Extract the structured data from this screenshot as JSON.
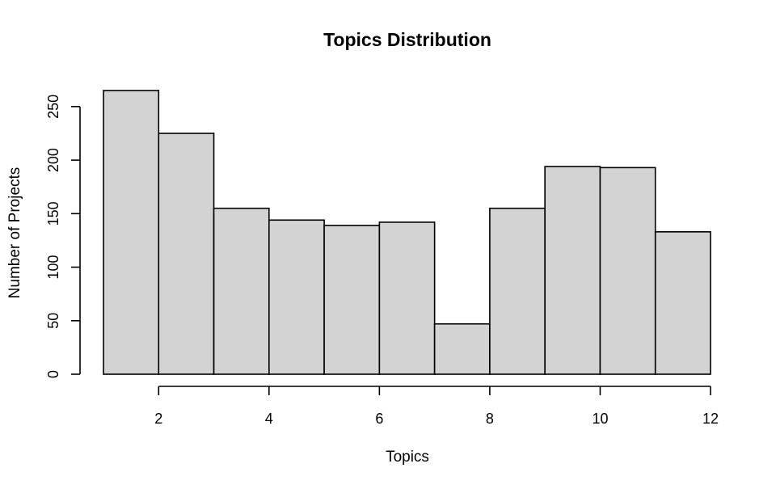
{
  "chart_data": {
    "type": "bar",
    "subtype": "histogram",
    "title": "Topics Distribution",
    "xlabel": "Topics",
    "ylabel": "Number of Projects",
    "bins": [
      {
        "x0": 1,
        "x1": 2,
        "value": 265
      },
      {
        "x0": 2,
        "x1": 3,
        "value": 225
      },
      {
        "x0": 3,
        "x1": 4,
        "value": 155
      },
      {
        "x0": 4,
        "x1": 5,
        "value": 144
      },
      {
        "x0": 5,
        "x1": 6,
        "value": 139
      },
      {
        "x0": 6,
        "x1": 7,
        "value": 142
      },
      {
        "x0": 7,
        "x1": 8,
        "value": 47
      },
      {
        "x0": 8,
        "x1": 9,
        "value": 155
      },
      {
        "x0": 9,
        "x1": 10,
        "value": 194
      },
      {
        "x0": 10,
        "x1": 11,
        "value": 193
      },
      {
        "x0": 11,
        "x1": 12,
        "value": 133
      }
    ],
    "x_ticks": [
      2,
      4,
      6,
      8,
      10,
      12
    ],
    "y_ticks": [
      0,
      50,
      100,
      150,
      200,
      250
    ],
    "xlim": [
      1,
      12
    ],
    "ylim": [
      0,
      265
    ],
    "bar_color": "#d3d3d3",
    "edge_color": "#000000",
    "grid": false,
    "legend": "none"
  }
}
